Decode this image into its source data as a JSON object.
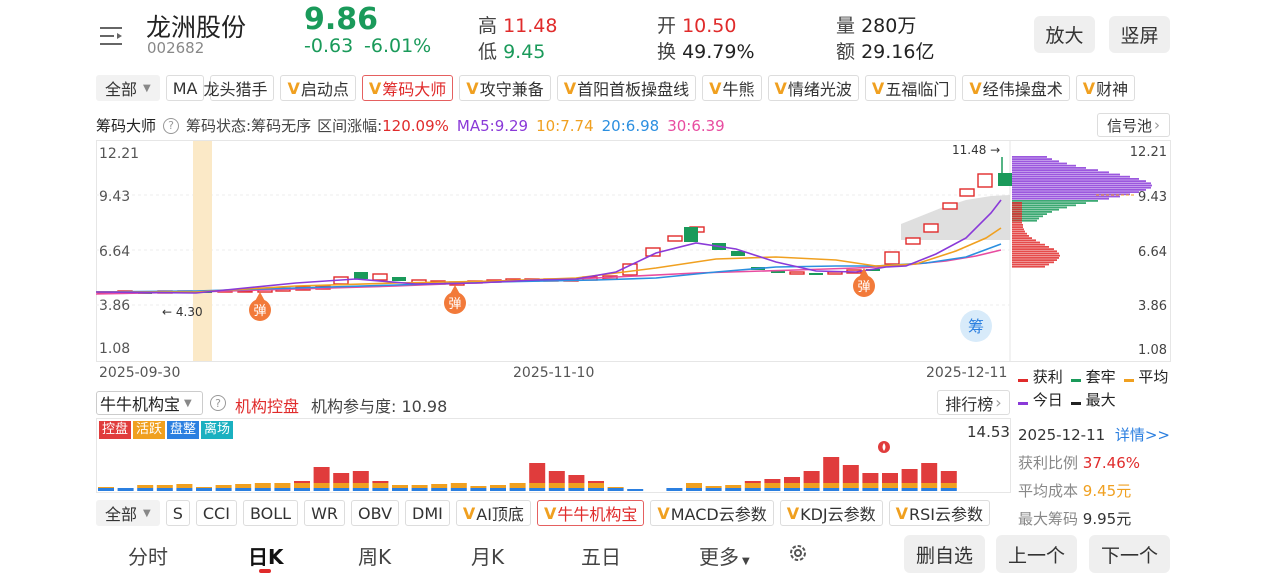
{
  "header": {
    "menu_icon": "list-menu-icon",
    "name": "龙洲股份",
    "code": "002682",
    "price": "9.86",
    "change": "-0.63",
    "change_pct": "-6.01%",
    "high_label": "高",
    "high": "11.48",
    "low_label": "低",
    "low": "9.45",
    "open_label": "开",
    "open": "10.50",
    "turnover_label": "换",
    "turnover": "49.79%",
    "volume_label": "量",
    "volume": "280万",
    "amount_label": "额",
    "amount": "29.16亿",
    "zoom_button": "放大",
    "portrait_button": "竖屏"
  },
  "indicator_tabs": {
    "all": "全部",
    "ma": "MA",
    "items": [
      "龙头猎手",
      "启动点",
      "筹码大师",
      "攻守兼备",
      "首阳首板操盘线",
      "牛熊",
      "情绪光波",
      "五福临门",
      "经伟操盘术",
      "财神"
    ],
    "selected": "筹码大师"
  },
  "chart_header": {
    "title": "筹码大师",
    "state": "筹码状态:筹码无序",
    "range_gain_label": "区间涨幅:",
    "range_gain": "120.09%",
    "ma5": "MA5:9.29",
    "ma10": "10:7.74",
    "ma20": "20:6.98",
    "ma30": "30:6.39",
    "signal_pool": "信号池"
  },
  "chart_data": {
    "type": "candlestick",
    "y_ticks": [
      "12.21",
      "9.43",
      "6.64",
      "3.86",
      "1.08"
    ],
    "ylim": [
      1.08,
      12.21
    ],
    "x_labels": [
      "2025-09-30",
      "2025-11-10",
      "2025-12-11"
    ],
    "annotations": {
      "max_marker": "11.48",
      "min_marker": "4.30",
      "bounce_label": "弹",
      "chip_badge": "筹"
    },
    "ma_colors": {
      "MA5": "#8a3ad8",
      "MA10": "#f0a020",
      "MA20": "#2b8fe0",
      "MA30": "#e84ca0"
    }
  },
  "chip_legend": {
    "profit": "获利",
    "trapped": "套牢",
    "average": "平均",
    "today": "今日",
    "max": "最大",
    "colors": {
      "profit": "#e02b2b",
      "trapped": "#1a9a5a",
      "average": "#f0a020",
      "today": "#8a3ad8",
      "max": "#222222"
    }
  },
  "chip_info": {
    "date": "2025-12-11",
    "details_link": "详情>>",
    "profit_ratio_label": "获利比例",
    "profit_ratio": "37.46%",
    "avg_cost_label": "平均成本",
    "avg_cost": "9.45元",
    "max_chip_label": "最大筹码",
    "max_chip": "9.95元"
  },
  "sub_indicator": {
    "selector": "牛牛机构宝",
    "label": "机构控盘",
    "participation": "机构参与度: 10.98",
    "ranking_button": "排行榜",
    "tags": [
      "控盘",
      "活跃",
      "盘整",
      "离场"
    ],
    "tag_colors": [
      "#e03c3c",
      "#f0a020",
      "#2b7fe0",
      "#1ab0c0"
    ],
    "max_value": "14.53"
  },
  "bottom_indicator_tabs": {
    "all": "全部",
    "items": [
      "S",
      "CCI",
      "BOLL",
      "WR",
      "OBV",
      "DMI",
      "AI顶底",
      "牛牛机构宝",
      "MACD云参数",
      "KDJ云参数",
      "RSI云参数"
    ],
    "vip": [
      "AI顶底",
      "牛牛机构宝",
      "MACD云参数",
      "KDJ云参数",
      "RSI云参数"
    ],
    "selected": "牛牛机构宝"
  },
  "period_tabs": {
    "items": [
      "分时",
      "日K",
      "周K",
      "月K",
      "五日",
      "更多"
    ],
    "selected": "日K"
  },
  "actions": {
    "remove": "删自选",
    "prev": "上一个",
    "next": "下一个"
  }
}
